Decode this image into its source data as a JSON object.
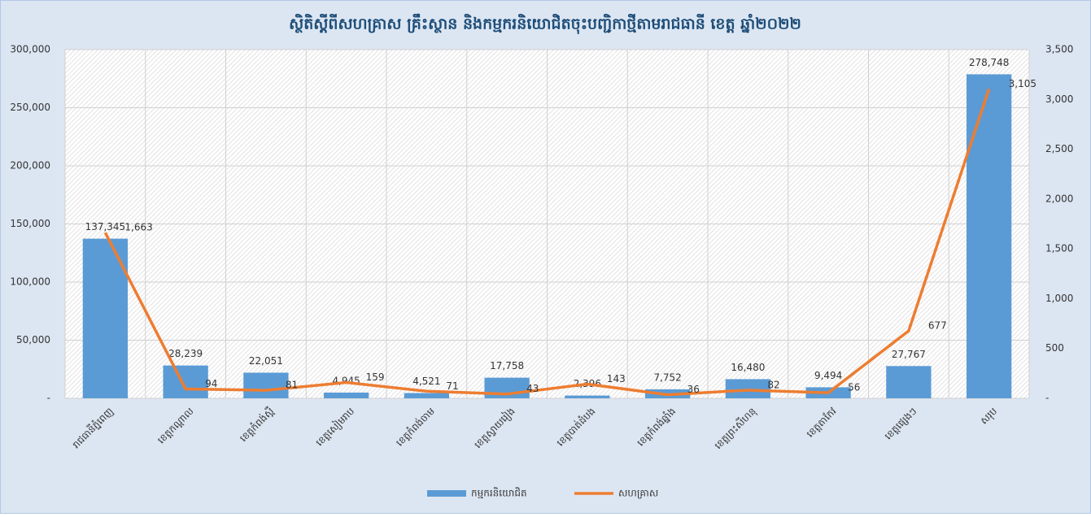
{
  "chart_data": {
    "type": "bar-line",
    "title": "ស្ថិតិស្តីពីសហគ្រាស គ្រឹះស្ថាន និងកម្មករនិយោជិតចុះបញ្ជិកាថ្មីតាមរាជធានី ខេត្ត ឆ្នាំ២០២២",
    "categories": [
      "រាជធានីភ្នំពេញ",
      "ខេត្តកណ្ដាល",
      "ខេត្តកំពង់ស្ពឺ",
      "ខេត្តសៀមរាប",
      "ខេត្តកំពង់ចាម",
      "ខេត្តស្វាយរៀង",
      "ខេត្តបាត់ដំបង",
      "ខេត្តកំពង់ឆ្នាំង",
      "ខេត្តព្រះសីហនុ",
      "ខេត្តតាកែវ",
      "ខេត្តផ្សេងៗ",
      "សរុប"
    ],
    "series": [
      {
        "name": "កម្មករនិយោជិត",
        "color": "#5b9bd5",
        "axis": "y",
        "values": [
          137345,
          28239,
          22051,
          4945,
          4521,
          17758,
          2396,
          7752,
          16480,
          9494,
          27767,
          278748
        ],
        "value_labels": [
          "137,345",
          "28,239",
          "22,051",
          "4,945",
          "4,521",
          "17,758",
          "2,396",
          "7,752",
          "16,480",
          "9,494",
          "27,767",
          "278,748"
        ]
      },
      {
        "name": "សហគ្រាស",
        "color": "#ed7d31",
        "axis": "y2",
        "values": [
          1663,
          94,
          81,
          159,
          71,
          43,
          143,
          36,
          82,
          56,
          677,
          3105
        ],
        "value_labels": [
          "1,663",
          "94",
          "81",
          "159",
          "71",
          "43",
          "143",
          "36",
          "82",
          "56",
          "677",
          "3,105"
        ]
      }
    ],
    "ylim": [
      0,
      300000
    ],
    "yticks": [
      {
        "value": 0,
        "label": "-"
      },
      {
        "value": 50000,
        "label": "50,000"
      },
      {
        "value": 100000,
        "label": "100,000"
      },
      {
        "value": 150000,
        "label": "150,000"
      },
      {
        "value": 200000,
        "label": "200,000"
      },
      {
        "value": 250000,
        "label": "250,000"
      },
      {
        "value": 300000,
        "label": "300,000"
      }
    ],
    "y2lim": [
      0,
      3500
    ],
    "y2ticks": [
      {
        "value": 0,
        "label": "-"
      },
      500,
      {
        "value": 1000,
        "label": "1,000"
      },
      {
        "value": 1500,
        "label": "1,500"
      },
      {
        "value": 2000,
        "label": "2,000"
      },
      {
        "value": 2500,
        "label": "2,500"
      },
      {
        "value": 3000,
        "label": "3,000"
      },
      {
        "value": 3500,
        "label": "3,500"
      }
    ],
    "grid": true
  }
}
